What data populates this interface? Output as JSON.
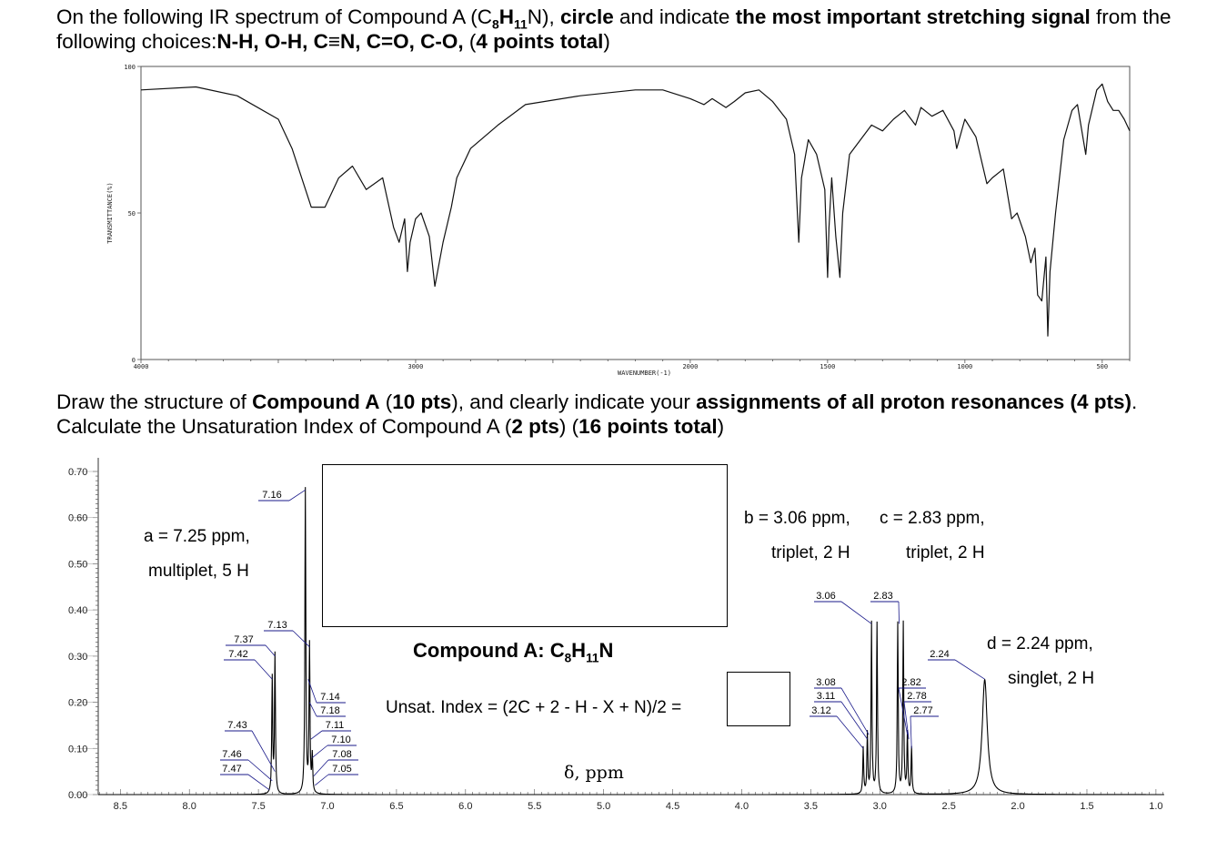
{
  "question1": {
    "part1": "On the following IR spectrum of Compound A (C",
    "sub1": "8",
    "part2": "H",
    "sub2": "11",
    "part3": "N), ",
    "bold1": "circle",
    "part4": " and indicate ",
    "bold2": "the most important stretching signal",
    "part5": " from the following choices:",
    "bold3": "N-H, O-H, C≡N, C=O, C-O,",
    "part6": " (",
    "bold4": "4 points total",
    "part7": ")"
  },
  "question2": {
    "part1": "Draw the structure of ",
    "bold1": "Compound A",
    "part2": " (",
    "bold2": "10 pts",
    "part3": "), and clearly indicate your ",
    "bold3": "assignments of all proton resonances (4 pts)",
    "part4": ". Calculate the Unsaturation Index of Compound A (",
    "bold4": "2 pts",
    "part5": ") (",
    "bold5": "16 points total",
    "part6": ")"
  },
  "ir_chart": {
    "chart_data": {
      "type": "line",
      "ylabel": "TRANSMITTANCE(%)",
      "xlabel": "WAVENUMBER(-1)",
      "y_ticks": [
        "100",
        "50",
        "0"
      ],
      "x_ticks": [
        "4000",
        "3000",
        "2000",
        "1500",
        "1000",
        "500"
      ],
      "xlim": [
        4000,
        400
      ],
      "ylim": [
        0,
        100
      ],
      "points": [
        [
          4000,
          92
        ],
        [
          3800,
          93
        ],
        [
          3650,
          90
        ],
        [
          3500,
          82
        ],
        [
          3450,
          72
        ],
        [
          3380,
          52
        ],
        [
          3330,
          52
        ],
        [
          3280,
          62
        ],
        [
          3230,
          66
        ],
        [
          3180,
          58
        ],
        [
          3120,
          62
        ],
        [
          3080,
          45
        ],
        [
          3060,
          40
        ],
        [
          3040,
          48
        ],
        [
          3030,
          30
        ],
        [
          3020,
          40
        ],
        [
          3000,
          48
        ],
        [
          2980,
          50
        ],
        [
          2950,
          42
        ],
        [
          2930,
          25
        ],
        [
          2900,
          40
        ],
        [
          2870,
          52
        ],
        [
          2850,
          62
        ],
        [
          2800,
          72
        ],
        [
          2700,
          80
        ],
        [
          2600,
          87
        ],
        [
          2400,
          90
        ],
        [
          2200,
          92
        ],
        [
          2100,
          92
        ],
        [
          2000,
          89
        ],
        [
          1950,
          87
        ],
        [
          1920,
          89
        ],
        [
          1870,
          86
        ],
        [
          1840,
          88
        ],
        [
          1800,
          91
        ],
        [
          1750,
          92
        ],
        [
          1700,
          88
        ],
        [
          1650,
          82
        ],
        [
          1620,
          70
        ],
        [
          1605,
          40
        ],
        [
          1595,
          62
        ],
        [
          1570,
          75
        ],
        [
          1540,
          70
        ],
        [
          1510,
          58
        ],
        [
          1500,
          28
        ],
        [
          1495,
          45
        ],
        [
          1485,
          62
        ],
        [
          1470,
          42
        ],
        [
          1455,
          28
        ],
        [
          1445,
          50
        ],
        [
          1420,
          70
        ],
        [
          1380,
          75
        ],
        [
          1340,
          80
        ],
        [
          1300,
          78
        ],
        [
          1260,
          82
        ],
        [
          1220,
          85
        ],
        [
          1180,
          80
        ],
        [
          1160,
          86
        ],
        [
          1120,
          83
        ],
        [
          1080,
          85
        ],
        [
          1040,
          78
        ],
        [
          1030,
          72
        ],
        [
          1000,
          82
        ],
        [
          960,
          76
        ],
        [
          920,
          60
        ],
        [
          900,
          62
        ],
        [
          860,
          65
        ],
        [
          830,
          48
        ],
        [
          810,
          50
        ],
        [
          780,
          42
        ],
        [
          760,
          33
        ],
        [
          745,
          38
        ],
        [
          735,
          22
        ],
        [
          720,
          20
        ],
        [
          705,
          35
        ],
        [
          698,
          8
        ],
        [
          690,
          30
        ],
        [
          670,
          50
        ],
        [
          640,
          75
        ],
        [
          610,
          85
        ],
        [
          590,
          87
        ],
        [
          560,
          70
        ],
        [
          550,
          80
        ],
        [
          520,
          92
        ],
        [
          500,
          94
        ],
        [
          480,
          88
        ],
        [
          460,
          85
        ],
        [
          440,
          85
        ],
        [
          420,
          82
        ],
        [
          400,
          78
        ]
      ]
    }
  },
  "nmr_chart": {
    "chart_data": {
      "type": "line",
      "xlabel": "δ, ppm",
      "x_ticks": [
        "8.5",
        "8.0",
        "7.5",
        "7.0",
        "6.5",
        "6.0",
        "5.5",
        "5.0",
        "4.5",
        "4.0",
        "3.5",
        "3.0",
        "2.5",
        "2.0",
        "1.5",
        "1.0"
      ],
      "y_ticks": [
        "0.70",
        "0.60",
        "0.50",
        "0.40",
        "0.30",
        "0.20",
        "0.10",
        "0.00"
      ],
      "xlim": [
        8.66,
        0.94
      ],
      "ylim": [
        0.0,
        0.7
      ],
      "peaks": [
        {
          "x": 7.4,
          "h": 0.25,
          "w": 0.004
        },
        {
          "x": 7.38,
          "h": 0.3,
          "w": 0.004
        },
        {
          "x": 7.16,
          "h": 0.66,
          "w": 0.004
        },
        {
          "x": 7.13,
          "h": 0.32,
          "w": 0.004
        },
        {
          "x": 7.11,
          "h": 0.08,
          "w": 0.004
        },
        {
          "x": 3.12,
          "h": 0.1,
          "w": 0.004
        },
        {
          "x": 3.09,
          "h": 0.13,
          "w": 0.004
        },
        {
          "x": 3.06,
          "h": 0.37,
          "w": 0.004
        },
        {
          "x": 3.02,
          "h": 0.37,
          "w": 0.004
        },
        {
          "x": 2.87,
          "h": 0.37,
          "w": 0.004
        },
        {
          "x": 2.83,
          "h": 0.37,
          "w": 0.004
        },
        {
          "x": 2.8,
          "h": 0.13,
          "w": 0.004
        },
        {
          "x": 2.77,
          "h": 0.1,
          "w": 0.004
        },
        {
          "x": 2.24,
          "h": 0.25,
          "w": 0.022
        }
      ],
      "peak_labels": [
        {
          "text": "7.16"
        },
        {
          "text": "7.13"
        },
        {
          "text": "7.37"
        },
        {
          "text": "7.42"
        },
        {
          "text": "7.43"
        },
        {
          "text": "7.46"
        },
        {
          "text": "7.47"
        },
        {
          "text": "7.14"
        },
        {
          "text": "7.18"
        },
        {
          "text": "7.11"
        },
        {
          "text": "7.10"
        },
        {
          "text": "7.08"
        },
        {
          "text": "7.05"
        },
        {
          "text": "3.06"
        },
        {
          "text": "2.83"
        },
        {
          "text": "3.08"
        },
        {
          "text": "3.11"
        },
        {
          "text": "3.12"
        },
        {
          "text": "2.82"
        },
        {
          "text": "2.78"
        },
        {
          "text": "2.77"
        },
        {
          "text": "2.24"
        }
      ]
    }
  },
  "annotations": {
    "a_line1": "a = 7.25 ppm,",
    "a_line2": "multiplet, 5 H",
    "b_line1": "b = 3.06 ppm,",
    "b_line2": "triplet, 2 H",
    "c_line1": "c = 2.83 ppm,",
    "c_line2": "triplet, 2 H",
    "d_line1": "d = 2.24 ppm,",
    "d_line2": "singlet, 2 H"
  },
  "compound": {
    "label": "Compound A: C",
    "sub1": "8",
    "h": "H",
    "sub2": "11",
    "n": "N"
  },
  "unsat": {
    "formula": "Unsat. Index = (2C + 2 - H -  X + N)/2 ="
  }
}
